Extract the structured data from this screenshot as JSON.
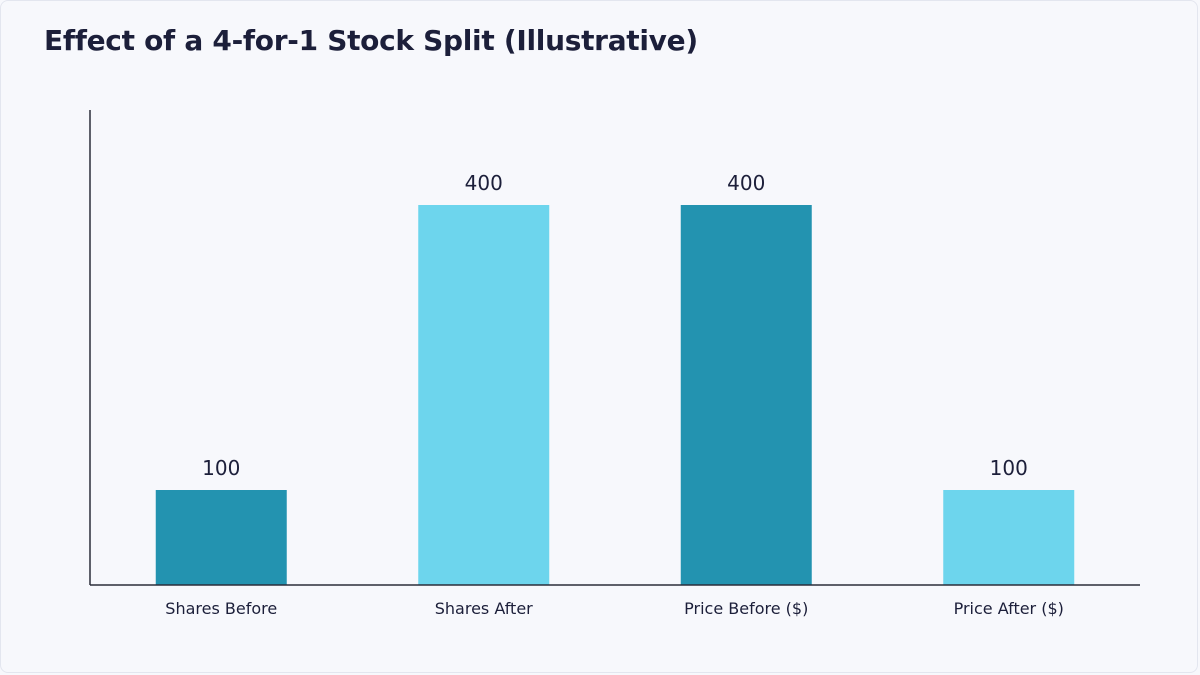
{
  "colors": {
    "background": "#f7f8fc",
    "dark_teal": "#2393b0",
    "light_cyan": "#6dd5ed",
    "text": "#1c1f3a",
    "axis": "#2b2d3a"
  },
  "chart_data": {
    "type": "bar",
    "title": "Effect of a 4-for-1 Stock Split (Illustrative)",
    "xlabel": "",
    "ylabel": "",
    "ylim": [
      0,
      500
    ],
    "grid": false,
    "legend": "none",
    "categories": [
      "Shares Before",
      "Shares After",
      "Price Before ($)",
      "Price After ($)"
    ],
    "values": [
      100,
      400,
      400,
      100
    ],
    "data_labels": [
      "100",
      "400",
      "400",
      "100"
    ],
    "bar_colors": [
      "#2393b0",
      "#6dd5ed",
      "#2393b0",
      "#6dd5ed"
    ]
  }
}
